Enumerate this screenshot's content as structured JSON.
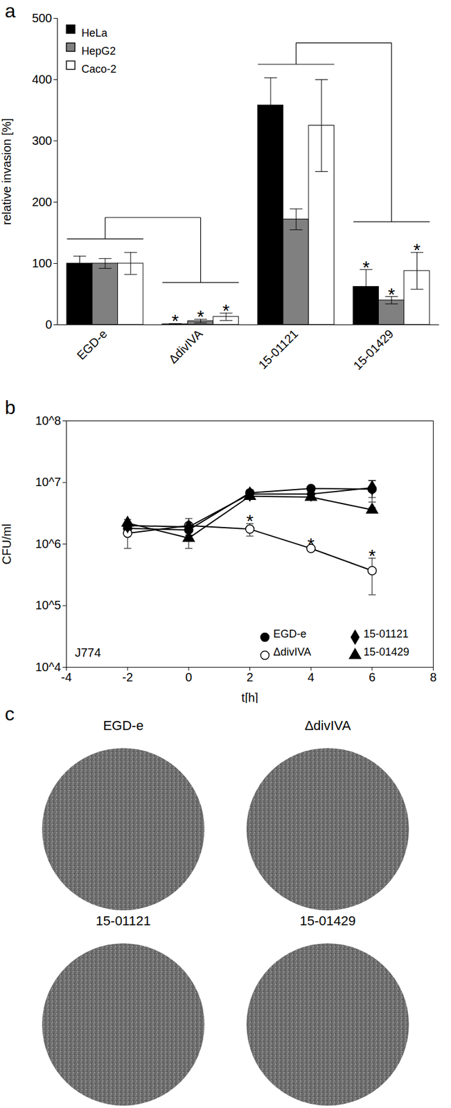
{
  "chart_data": [
    {
      "type": "bar",
      "title": "a",
      "ylabel": "relative invasion [%]",
      "categories": [
        "EGD-e",
        "ΔdivIVA",
        "15-01121",
        "15-01429"
      ],
      "series": [
        {
          "name": "HeLa",
          "color": "#000000",
          "values": [
            100,
            1,
            358,
            62
          ],
          "errors": [
            12,
            1,
            45,
            28
          ],
          "significance": [
            null,
            "*",
            null,
            "*"
          ]
        },
        {
          "name": "HepG2",
          "color": "#808080",
          "values": [
            100,
            6,
            172,
            40
          ],
          "errors": [
            8,
            3,
            17,
            6
          ],
          "significance": [
            null,
            "*",
            null,
            "*"
          ]
        },
        {
          "name": "Caco-2",
          "color": "#ffffff",
          "values": [
            100,
            13,
            325,
            88
          ],
          "errors": [
            18,
            6,
            75,
            30
          ],
          "significance": [
            null,
            "*",
            null,
            "*"
          ]
        }
      ],
      "comparisons": [
        [
          "EGD-e",
          "ΔdivIVA"
        ],
        [
          "15-01121",
          "15-01429"
        ]
      ],
      "ylim": [
        0,
        500
      ],
      "yticks": [
        0,
        100,
        200,
        300,
        400,
        500
      ],
      "legend": "top-left",
      "grid": false
    },
    {
      "type": "line",
      "title": "b",
      "xlabel": "t[h]",
      "ylabel": "CFU/ml",
      "annotation": "J774",
      "x": [
        -2,
        0,
        2,
        4,
        6
      ],
      "series": [
        {
          "name": "EGD-e",
          "color": "#000000",
          "marker": "circle",
          "values": [
            1800000,
            1700000,
            6800000,
            8000000,
            7800000
          ],
          "errors": [
            300000,
            400000,
            800000,
            500000,
            3000000
          ]
        },
        {
          "name": "ΔdivIVA",
          "color": "#000000",
          "marker": "open_circle",
          "values": [
            1500000,
            2000000,
            1750000,
            850000,
            370000
          ],
          "errors": [
            650000,
            600000,
            400000,
            50000,
            220000
          ],
          "significance": [
            null,
            null,
            "*",
            "*",
            "*"
          ]
        },
        {
          "name": "15-01121",
          "color": "#000000",
          "marker": "diamond",
          "values": [
            2000000,
            1900000,
            6500000,
            6500000,
            8200000
          ],
          "errors": [
            300000,
            300000,
            600000,
            500000,
            2500000
          ]
        },
        {
          "name": "15-01429",
          "color": "#000000",
          "marker": "triangle",
          "values": [
            2200000,
            1250000,
            6000000,
            5800000,
            3600000
          ],
          "errors": [
            300000,
            400000,
            500000,
            500000,
            300000
          ]
        }
      ],
      "xlim": [
        -4,
        8
      ],
      "xticks": [
        -4,
        -2,
        0,
        2,
        4,
        6,
        8
      ],
      "log": "y",
      "ylim": [
        10000,
        100000000
      ],
      "yticks": [
        {
          "value": 10000,
          "label": "10^4"
        },
        {
          "value": 100000,
          "label": "10^5"
        },
        {
          "value": 1000000,
          "label": "10^6"
        },
        {
          "value": 10000000,
          "label": "10^7"
        },
        {
          "value": 100000000,
          "label": "10^8"
        }
      ],
      "legend": "bottom-right",
      "grid": false
    },
    {
      "type": "image",
      "title": "c",
      "labels": [
        "EGD-e",
        "ΔdivIVA",
        "15-01121",
        "15-01429"
      ]
    }
  ]
}
